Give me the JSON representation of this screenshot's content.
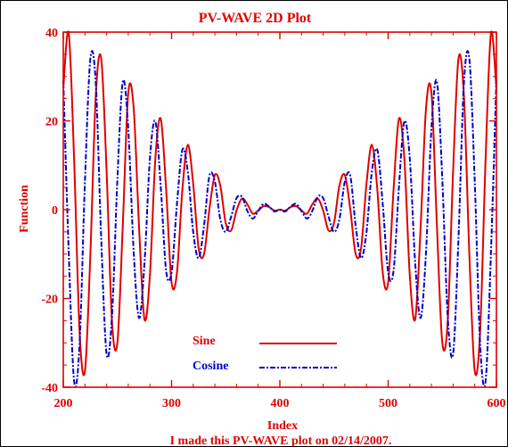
{
  "chart_data": {
    "type": "line",
    "title": "PV-WAVE 2D Plot",
    "xlabel": "Index",
    "ylabel": "Function",
    "xlim": [
      200,
      600
    ],
    "ylim": [
      -40,
      40
    ],
    "x_ticks": [
      "200",
      "300",
      "400",
      "500",
      "600"
    ],
    "y_ticks": [
      "-40",
      "-20",
      "0",
      "20",
      "40"
    ],
    "grid": false,
    "legend_position": "bottom-left",
    "series": [
      {
        "name": "Sine",
        "color": "#e00000",
        "line_style": "solid",
        "x": [
          200,
          205,
          210,
          215,
          220,
          225,
          230,
          235,
          240,
          245,
          250,
          255,
          260,
          265,
          270,
          275,
          280,
          285,
          290,
          295,
          300,
          305,
          310,
          315,
          320,
          325,
          330,
          335,
          340,
          345,
          350,
          355,
          360,
          365,
          370,
          375,
          380,
          385,
          390,
          395,
          400,
          405,
          410,
          415,
          420,
          425,
          430,
          435,
          440,
          445,
          450,
          455,
          460,
          465,
          470,
          475,
          480,
          485,
          490,
          495,
          500,
          505,
          510,
          515,
          520,
          525,
          530,
          535,
          540,
          545,
          550,
          555,
          560,
          565,
          570,
          575,
          580,
          585,
          590,
          595,
          600
        ],
        "values": [
          27.3,
          39.8,
          11.4,
          -27.2,
          -36.4,
          -10.1,
          25.6,
          34.1,
          8.7,
          -25.3,
          -29.9,
          -3.3,
          26.3,
          22.9,
          -4.0,
          -24.7,
          -14.8,
          11.4,
          20.5,
          4.5,
          -16.4,
          -14.2,
          4.6,
          14.6,
          5.8,
          -8.7,
          -10.0,
          0.2,
          7.8,
          5.4,
          -3.0,
          -4.7,
          -0.2,
          2.5,
          1.2,
          -0.9,
          -0.2,
          0.8,
          0.6,
          -0.2,
          0.0,
          -0.2,
          0.6,
          0.8,
          -0.2,
          -0.9,
          1.2,
          2.5,
          -0.2,
          -4.7,
          -3.0,
          5.4,
          7.8,
          0.2,
          -10.0,
          -8.7,
          5.8,
          14.6,
          4.6,
          -14.2,
          -16.4,
          4.5,
          20.5,
          11.4,
          -14.8,
          -24.7,
          -4.0,
          22.9,
          26.3,
          -3.3,
          -29.9,
          -25.3,
          8.7,
          34.1,
          25.6,
          -10.1,
          -36.4,
          -27.2,
          11.4,
          39.8,
          27.3
        ]
      },
      {
        "name": "Cosine",
        "color": "#0000c8",
        "line_style": "dash-dot",
        "x": [
          200,
          205,
          210,
          215,
          220,
          225,
          230,
          235,
          240,
          245,
          250,
          255,
          260,
          265,
          270,
          275,
          280,
          285,
          290,
          295,
          300,
          305,
          310,
          315,
          320,
          325,
          330,
          335,
          340,
          345,
          350,
          355,
          360,
          365,
          370,
          375,
          380,
          385,
          390,
          395,
          400,
          405,
          410,
          415,
          420,
          425,
          430,
          435,
          440,
          445,
          450,
          455,
          460,
          465,
          470,
          475,
          480,
          485,
          490,
          495,
          500,
          505,
          510,
          515,
          520,
          525,
          530,
          535,
          540,
          545,
          550,
          555,
          560,
          565,
          570,
          575,
          580,
          585,
          590,
          595,
          600
        ],
        "values": [
          29.3,
          -9.4,
          -38.6,
          -30.5,
          6.3,
          34.0,
          28.6,
          -6.3,
          -32.5,
          -24.0,
          7.0,
          28.9,
          18.3,
          -9.5,
          -24.4,
          -12.1,
          11.5,
          19.9,
          5.2,
          -13.8,
          -14.1,
          1.3,
          13.5,
          8.6,
          -5.1,
          -10.9,
          -3.6,
          7.7,
          6.3,
          -2.2,
          -5.0,
          -1.6,
          2.6,
          2.9,
          -0.3,
          -2.0,
          -0.3,
          1.3,
          0.7,
          -0.4,
          0.0,
          -0.4,
          0.7,
          1.3,
          -0.3,
          -2.0,
          -0.3,
          2.9,
          2.6,
          -1.6,
          -5.0,
          -2.2,
          6.3,
          7.7,
          -3.6,
          -10.9,
          -5.1,
          8.6,
          13.5,
          1.3,
          -14.1,
          -13.8,
          5.2,
          19.9,
          11.5,
          -12.1,
          -24.4,
          -9.5,
          18.3,
          28.9,
          7.0,
          -24.0,
          -32.5,
          -6.3,
          28.6,
          34.0,
          6.3,
          -30.5,
          -38.6,
          -9.4,
          29.3
        ]
      }
    ]
  },
  "footer": {
    "note": "I made this PV-WAVE plot on 02/14/2007."
  }
}
